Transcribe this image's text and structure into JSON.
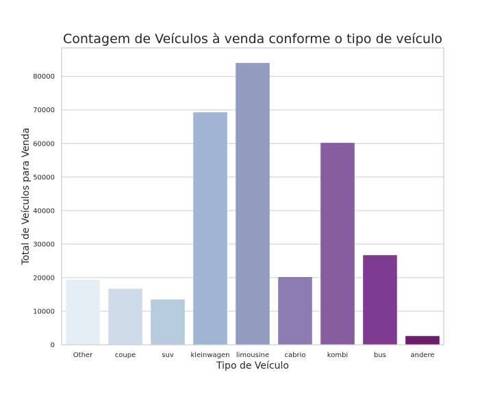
{
  "chart_data": {
    "type": "bar",
    "title": "Contagem de Veículos à venda conforme o tipo de veículo",
    "xlabel": "Tipo de Veículo",
    "ylabel": "Total de Veículos para Venda",
    "categories": [
      "Other",
      "coupe",
      "suv",
      "kleinwagen",
      "limousine",
      "cabrio",
      "kombi",
      "bus",
      "andere"
    ],
    "values": [
      19400,
      16700,
      13500,
      69300,
      84000,
      20200,
      60200,
      26700,
      2600
    ],
    "colors": [
      "#e6eef5",
      "#cfdbe8",
      "#b7cbdf",
      "#a0b5d3",
      "#949bc0",
      "#8c7bb1",
      "#875da2",
      "#7e3b8f",
      "#6b1e6d"
    ],
    "ylim": [
      0,
      88500
    ],
    "yticks": [
      0,
      10000,
      20000,
      30000,
      40000,
      50000,
      60000,
      70000,
      80000
    ],
    "grid": true
  }
}
